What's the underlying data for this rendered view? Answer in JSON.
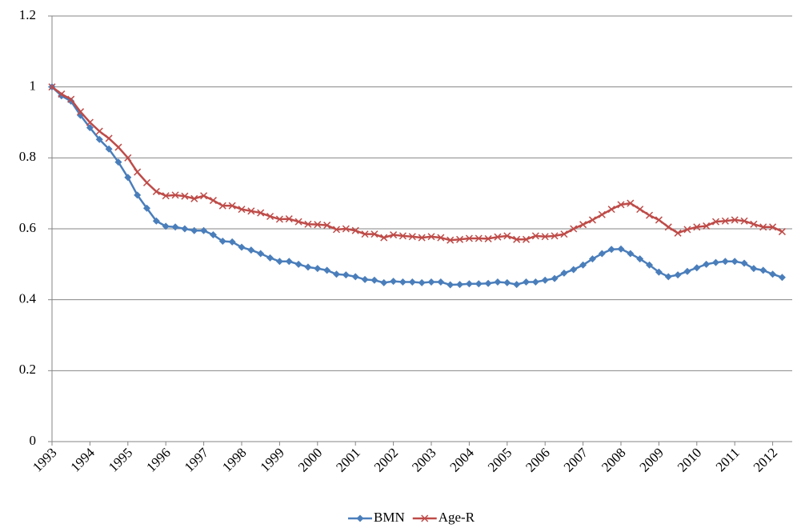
{
  "chart_data": {
    "type": "line",
    "categories": [
      "1993",
      null,
      null,
      null,
      "1994",
      null,
      null,
      null,
      "1995",
      null,
      null,
      null,
      "1996",
      null,
      null,
      null,
      "1997",
      null,
      null,
      null,
      "1998",
      null,
      null,
      null,
      "1999",
      null,
      null,
      null,
      "2000",
      null,
      null,
      null,
      "2001",
      null,
      null,
      null,
      "2002",
      null,
      null,
      null,
      "2003",
      null,
      null,
      null,
      "2004",
      null,
      null,
      null,
      "2005",
      null,
      null,
      null,
      "2006",
      null,
      null,
      null,
      "2007",
      null,
      null,
      null,
      "2008",
      null,
      null,
      null,
      "2009",
      null,
      null,
      null,
      "2010",
      null,
      null,
      null,
      "2011",
      null,
      null,
      null,
      "2012",
      null
    ],
    "series": [
      {
        "name": "BMN",
        "color": "#4a7ebb",
        "marker": "diamond",
        "values": [
          1.0,
          0.975,
          0.96,
          0.92,
          0.885,
          0.852,
          0.825,
          0.788,
          0.745,
          0.695,
          0.658,
          0.622,
          0.607,
          0.605,
          0.6,
          0.595,
          0.595,
          0.583,
          0.565,
          0.563,
          0.548,
          0.54,
          0.53,
          0.518,
          0.508,
          0.508,
          0.5,
          0.492,
          0.488,
          0.483,
          0.472,
          0.47,
          0.465,
          0.457,
          0.455,
          0.448,
          0.452,
          0.45,
          0.45,
          0.448,
          0.45,
          0.45,
          0.442,
          0.443,
          0.445,
          0.445,
          0.446,
          0.45,
          0.448,
          0.443,
          0.45,
          0.45,
          0.455,
          0.46,
          0.475,
          0.485,
          0.498,
          0.515,
          0.53,
          0.542,
          0.543,
          0.53,
          0.515,
          0.498,
          0.478,
          0.465,
          0.47,
          0.48,
          0.49,
          0.5,
          0.505,
          0.508,
          0.508,
          0.503,
          0.488,
          0.483,
          0.472,
          0.463
        ]
      },
      {
        "name": "Age-R",
        "color": "#be4b48",
        "marker": "x",
        "values": [
          1.0,
          0.98,
          0.965,
          0.93,
          0.9,
          0.875,
          0.855,
          0.83,
          0.8,
          0.76,
          0.73,
          0.705,
          0.693,
          0.695,
          0.692,
          0.685,
          0.693,
          0.68,
          0.665,
          0.665,
          0.655,
          0.65,
          0.645,
          0.635,
          0.627,
          0.628,
          0.62,
          0.613,
          0.612,
          0.61,
          0.598,
          0.6,
          0.595,
          0.585,
          0.585,
          0.575,
          0.583,
          0.58,
          0.578,
          0.575,
          0.578,
          0.575,
          0.568,
          0.57,
          0.573,
          0.573,
          0.572,
          0.577,
          0.58,
          0.57,
          0.57,
          0.58,
          0.578,
          0.58,
          0.585,
          0.6,
          0.612,
          0.625,
          0.64,
          0.655,
          0.668,
          0.672,
          0.655,
          0.638,
          0.625,
          0.605,
          0.588,
          0.598,
          0.605,
          0.608,
          0.62,
          0.622,
          0.625,
          0.622,
          0.613,
          0.605,
          0.605,
          0.592
        ]
      }
    ],
    "ylim": [
      0,
      1.2
    ],
    "yticks": [
      0,
      0.2,
      0.4,
      0.6,
      0.8,
      1,
      1.2
    ],
    "grid": true,
    "legend": "bottom"
  }
}
